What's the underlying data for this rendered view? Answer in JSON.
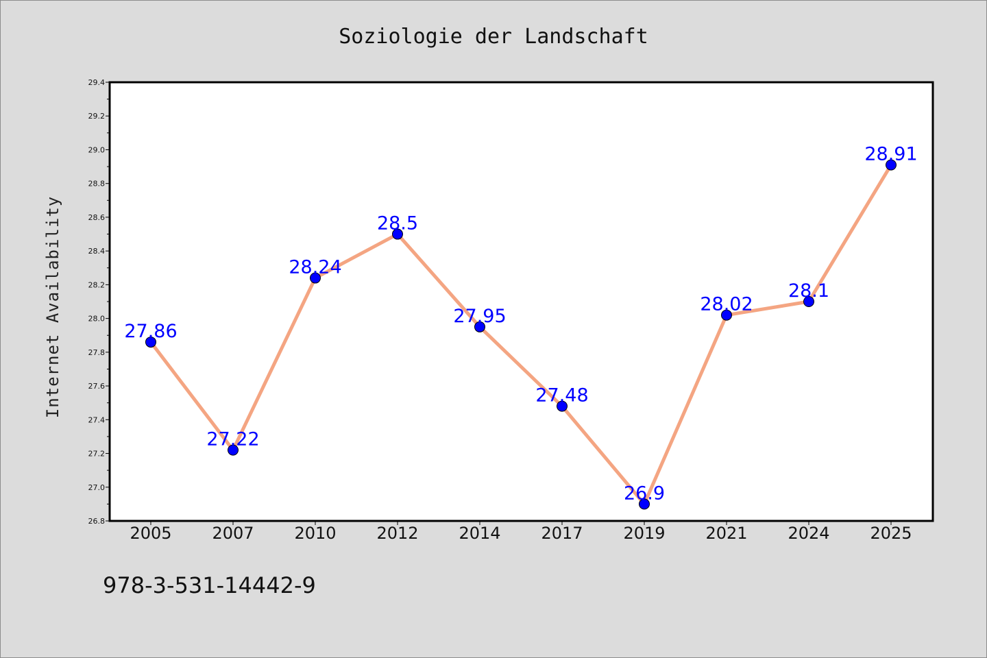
{
  "chart_data": {
    "type": "line",
    "title": "Soziologie der Landschaft",
    "xlabel": "",
    "ylabel": "Internet Availability",
    "categories": [
      "2005",
      "2007",
      "2010",
      "2012",
      "2014",
      "2017",
      "2019",
      "2021",
      "2024",
      "2025"
    ],
    "values": [
      27.86,
      27.22,
      28.24,
      28.5,
      27.95,
      27.48,
      26.9,
      28.02,
      28.1,
      28.91
    ],
    "data_labels": [
      "27.86",
      "27.22",
      "28.24",
      "28.5",
      "27.95",
      "27.48",
      "26.9",
      "28.02",
      "28.1",
      "28.91"
    ],
    "ylim": [
      26.8,
      29.4
    ],
    "yticks": [
      "26.8",
      "27.0",
      "27.2",
      "27.4",
      "27.6",
      "27.8",
      "28.0",
      "28.2",
      "28.4",
      "28.6",
      "28.8",
      "29.0",
      "29.2",
      "29.4"
    ],
    "grid": false,
    "legend": "none",
    "colors": {
      "line": "#f4a582",
      "marker": "#0000ff",
      "data_label": "#0000ff",
      "plot_background": "#ffffff",
      "page_background": "#dcdcdc"
    }
  },
  "footer": {
    "isbn": "978-3-531-14442-9"
  }
}
